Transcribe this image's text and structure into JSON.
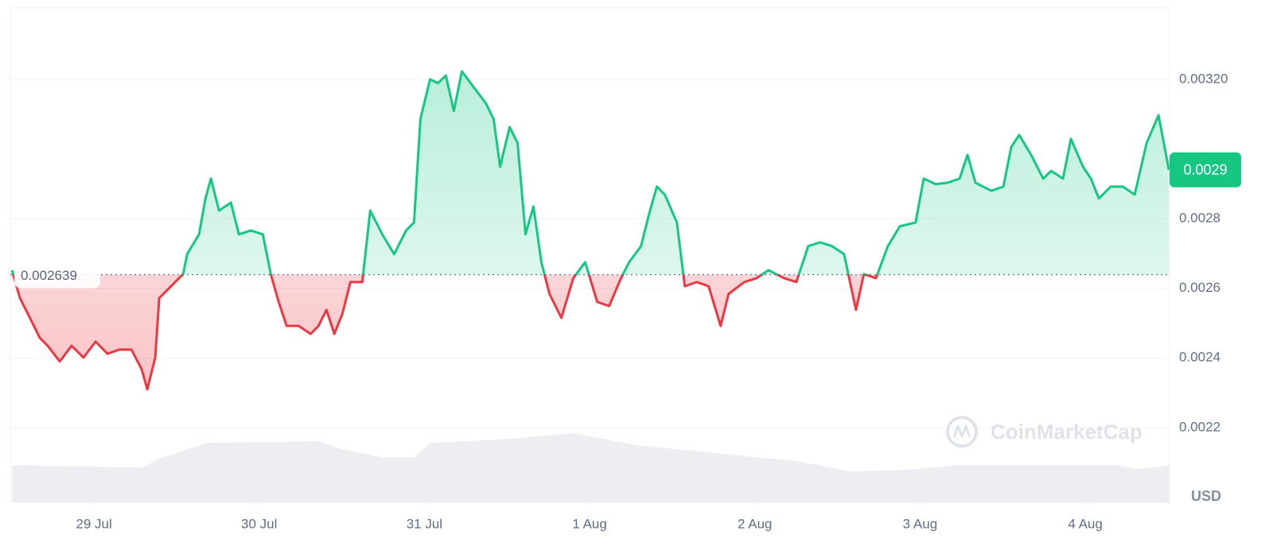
{
  "chart_data": {
    "type": "price-area",
    "series": [
      {
        "name": "Price",
        "color": "#16c784",
        "below_color": "#ea3943",
        "x": [
          28.504,
          28.552,
          28.624,
          28.672,
          28.72,
          28.793,
          28.865,
          28.937,
          29.01,
          29.082,
          29.154,
          29.227,
          29.289,
          29.323,
          29.371,
          29.395,
          29.467,
          29.54,
          29.564,
          29.636,
          29.675,
          29.708,
          29.757,
          29.829,
          29.877,
          29.949,
          30.022,
          30.07,
          30.118,
          30.166,
          30.239,
          30.311,
          30.359,
          30.407,
          30.455,
          30.504,
          30.552,
          30.624,
          30.672,
          30.745,
          30.817,
          30.889,
          30.937,
          30.976,
          31.034,
          31.082,
          31.13,
          31.178,
          31.227,
          31.299,
          31.371,
          31.419,
          31.458,
          31.516,
          31.564,
          31.612,
          31.66,
          31.708,
          31.757,
          31.829,
          31.901,
          31.973,
          32.046,
          32.118,
          32.19,
          32.239,
          32.311,
          32.359,
          32.407,
          32.455,
          32.528,
          32.576,
          32.648,
          32.72,
          32.793,
          32.841,
          32.937,
          33.01,
          33.082,
          33.178,
          33.251,
          33.323,
          33.395,
          33.467,
          33.54,
          33.612,
          33.66,
          33.733,
          33.805,
          33.877,
          33.973,
          34.022,
          34.094,
          34.166,
          34.239,
          34.287,
          34.335,
          34.431,
          34.504,
          34.552,
          34.6,
          34.672,
          34.745,
          34.793,
          34.865,
          34.913,
          34.986,
          35.034,
          35.082,
          35.154,
          35.227,
          35.299,
          35.371,
          35.443,
          35.506
        ],
        "values": [
          0.002652,
          0.002572,
          0.002504,
          0.002458,
          0.002435,
          0.00239,
          0.002435,
          0.002401,
          0.002447,
          0.002412,
          0.002424,
          0.002424,
          0.002367,
          0.00231,
          0.002401,
          0.002572,
          0.002606,
          0.002641,
          0.002698,
          0.002755,
          0.002858,
          0.002915,
          0.002823,
          0.002846,
          0.002755,
          0.002766,
          0.002755,
          0.002641,
          0.002561,
          0.002492,
          0.002492,
          0.002469,
          0.002492,
          0.002538,
          0.002469,
          0.002527,
          0.002618,
          0.002618,
          0.002823,
          0.002755,
          0.002698,
          0.002766,
          0.002789,
          0.003086,
          0.0032,
          0.003189,
          0.003211,
          0.003109,
          0.003223,
          0.003177,
          0.003132,
          0.003086,
          0.002949,
          0.003063,
          0.003017,
          0.002755,
          0.002835,
          0.002675,
          0.002584,
          0.002515,
          0.002629,
          0.002675,
          0.002561,
          0.002549,
          0.002629,
          0.002675,
          0.002721,
          0.002812,
          0.002892,
          0.002869,
          0.002789,
          0.002606,
          0.002618,
          0.002606,
          0.002492,
          0.002584,
          0.002618,
          0.002629,
          0.002652,
          0.002629,
          0.002618,
          0.002721,
          0.002732,
          0.002721,
          0.002698,
          0.002538,
          0.002641,
          0.002629,
          0.002721,
          0.002778,
          0.002789,
          0.002915,
          0.002899,
          0.002903,
          0.002915,
          0.002983,
          0.002903,
          0.00288,
          0.002892,
          0.003006,
          0.00304,
          0.002983,
          0.002915,
          0.002937,
          0.002915,
          0.003029,
          0.002949,
          0.002915,
          0.002858,
          0.002892,
          0.002892,
          0.002869,
          0.003017,
          0.003097,
          0.00294
        ]
      }
    ],
    "volume": {
      "color": "#eceef2",
      "x": [
        28.504,
        29.299,
        29.395,
        29.684,
        30.359,
        30.504,
        30.745,
        30.937,
        31.034,
        31.516,
        31.901,
        32.287,
        32.769,
        33.251,
        33.588,
        33.973,
        34.214,
        35.178,
        35.323,
        35.506
      ],
      "values": [
        47,
        44,
        55,
        75,
        77,
        67,
        57,
        57,
        75,
        80,
        87,
        72,
        62,
        52,
        39,
        42,
        47,
        47,
        42,
        47
      ],
      "lim": [
        0,
        100
      ]
    },
    "reference": 0.002639,
    "current_price": {
      "value": 0.00294,
      "label": "0.0029"
    },
    "xlim": [
      28.494,
      35.51
    ],
    "xticks": [
      {
        "value": 29,
        "label": "29 Jul"
      },
      {
        "value": 30,
        "label": "30 Jul"
      },
      {
        "value": 31,
        "label": "31 Jul"
      },
      {
        "value": 32,
        "label": "1 Aug"
      },
      {
        "value": 33,
        "label": "2 Aug"
      },
      {
        "value": 34,
        "label": "3 Aug"
      },
      {
        "value": 35,
        "label": "4 Aug"
      }
    ],
    "ylim": [
      0.001985,
      0.003405
    ],
    "yticks": [
      {
        "value": 0.0032,
        "label": "0.00320"
      },
      0.0028,
      0.0026,
      0.0024,
      0.0022
    ],
    "grid": true,
    "unit_label": "USD",
    "watermark": "CoinMarketCap"
  }
}
